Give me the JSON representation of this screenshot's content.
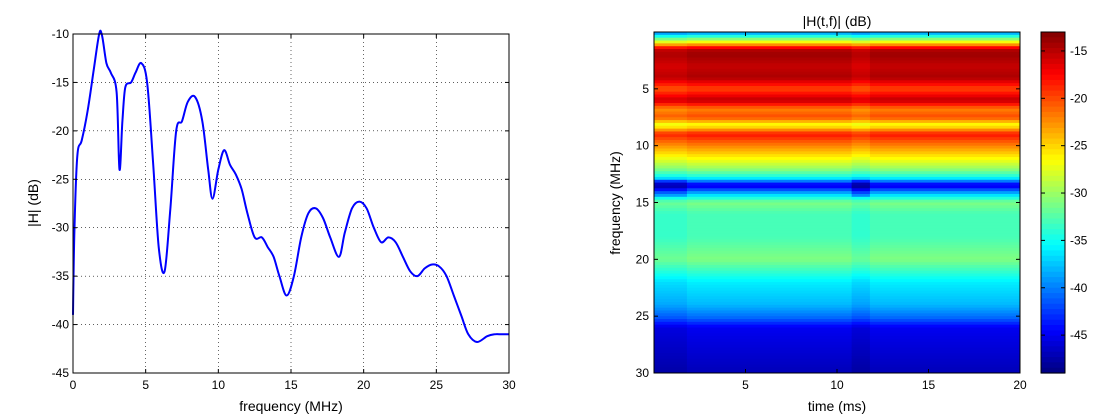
{
  "chart_data": [
    {
      "type": "line",
      "title": "",
      "xlabel": "frequency (MHz)",
      "ylabel": "|H| (dB)",
      "xlim": [
        0,
        30
      ],
      "ylim": [
        -45,
        -10
      ],
      "xticks": [
        0,
        5,
        10,
        15,
        20,
        25,
        30
      ],
      "yticks": [
        -45,
        -40,
        -35,
        -30,
        -25,
        -20,
        -15,
        -10
      ],
      "grid": true,
      "line_color": "#0000ff",
      "series": [
        {
          "x": [
            0,
            0.1,
            0.3,
            0.6,
            1.0,
            1.4,
            1.8,
            2.0,
            2.3,
            2.6,
            3.0,
            3.2,
            3.4,
            3.6,
            4.0,
            4.3,
            4.7,
            5.1,
            5.5,
            5.9,
            6.3,
            6.7,
            7.1,
            7.5,
            7.9,
            8.4,
            8.9,
            9.3,
            9.6,
            10.0,
            10.4,
            10.8,
            11.2,
            11.6,
            12.0,
            12.5,
            13.0,
            13.4,
            13.8,
            14.2,
            14.7,
            15.2,
            15.7,
            16.2,
            16.7,
            17.2,
            17.7,
            18.3,
            18.7,
            19.2,
            19.7,
            20.2,
            20.7,
            21.2,
            21.7,
            22.2,
            22.7,
            23.2,
            23.7,
            24.2,
            24.7,
            25.2,
            25.7,
            26.2,
            26.7,
            27.2,
            27.8,
            28.5,
            29.0,
            29.5,
            30.0
          ],
          "y": [
            -39,
            -30,
            -22.5,
            -21,
            -18,
            -14,
            -10,
            -10.2,
            -13,
            -14,
            -16,
            -24,
            -19,
            -15.5,
            -15,
            -14,
            -13,
            -15,
            -23,
            -32,
            -34.5,
            -28,
            -20,
            -19,
            -17,
            -16.5,
            -19,
            -24,
            -27,
            -24,
            -22,
            -23.5,
            -24.5,
            -26,
            -28.5,
            -31,
            -31,
            -32,
            -33,
            -35,
            -37,
            -35,
            -31,
            -28.5,
            -28,
            -29,
            -31,
            -33,
            -30.5,
            -28,
            -27.3,
            -28,
            -30,
            -31.5,
            -31,
            -31.5,
            -33,
            -34.5,
            -35,
            -34.2,
            -33.8,
            -34,
            -35,
            -37,
            -39,
            -41,
            -41.8,
            -41.2,
            -41,
            -41,
            -41
          ]
        }
      ]
    },
    {
      "type": "heatmap",
      "title": "|H(t,f)| (dB)",
      "xlabel": "time (ms)",
      "ylabel": "frequency (MHz)",
      "xlim": [
        0,
        20
      ],
      "ylim": [
        30,
        0
      ],
      "xticks": [
        5,
        10,
        15,
        20
      ],
      "yticks": [
        5,
        10,
        15,
        20,
        25,
        30
      ],
      "colorbar_ticks": [
        -15,
        -20,
        -25,
        -30,
        -35,
        -40,
        -45
      ],
      "colorbar_range": [
        -49,
        -13
      ],
      "colormap": "jet",
      "profile_freq_mhz": [
        0,
        1,
        1.5,
        2,
        3,
        4,
        5,
        6,
        6.8,
        7.5,
        8.2,
        9,
        10,
        11,
        12,
        12.8,
        13.5,
        14.2,
        15,
        16,
        18,
        20,
        22,
        24,
        25.2,
        26,
        28,
        30
      ],
      "profile_db": [
        -40,
        -25,
        -15,
        -14,
        -15.5,
        -14.5,
        -20,
        -15,
        -22,
        -20,
        -27,
        -18,
        -22,
        -26,
        -30,
        -35,
        -46,
        -38,
        -31,
        -33,
        -33,
        -31,
        -36,
        -38,
        -41,
        -45,
        -46,
        -47
      ],
      "time_segments": [
        {
          "t0": 0,
          "t1": 1.8,
          "offset_db": -0.6
        },
        {
          "t0": 1.8,
          "t1": 10.8,
          "offset_db": 0
        },
        {
          "t0": 10.8,
          "t1": 11.8,
          "offset_db": -0.8
        },
        {
          "t0": 11.8,
          "t1": 20,
          "offset_db": 0
        }
      ]
    }
  ]
}
